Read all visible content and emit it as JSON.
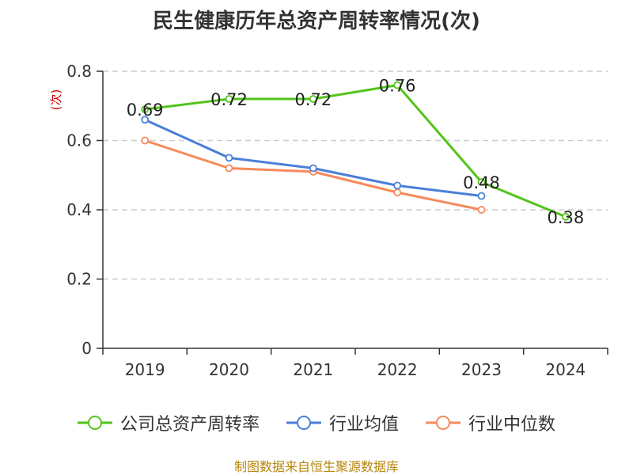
{
  "chart_data": {
    "type": "line",
    "title": "民生健康历年总资产周转率情况(次)",
    "ylabel": "(次)",
    "xlabel": "",
    "categories": [
      "2019",
      "2020",
      "2021",
      "2022",
      "2023",
      "2024"
    ],
    "ylim": [
      0,
      0.8
    ],
    "yticks": [
      0,
      0.2,
      0.4,
      0.6,
      0.8
    ],
    "ytick_labels": [
      "0",
      "0.2",
      "0.4",
      "0.6",
      "0.8"
    ],
    "grid": true,
    "legend_position": "bottom",
    "series": [
      {
        "name": "公司总资产周转率",
        "color": "#52c41a",
        "values": [
          0.69,
          0.72,
          0.72,
          0.76,
          0.48,
          0.38
        ],
        "labels": [
          "0.69",
          "0.72",
          "0.72",
          "0.76",
          "0.48",
          "0.38"
        ],
        "show_labels": true
      },
      {
        "name": "行业均值",
        "color": "#4a7fd8",
        "values": [
          0.66,
          0.55,
          0.52,
          0.47,
          0.44,
          null
        ],
        "show_labels": false
      },
      {
        "name": "行业中位数",
        "color": "#f58a5a",
        "values": [
          0.6,
          0.52,
          0.51,
          0.45,
          0.4,
          null
        ],
        "show_labels": false
      }
    ]
  },
  "source": "制图数据来自恒生聚源数据库"
}
